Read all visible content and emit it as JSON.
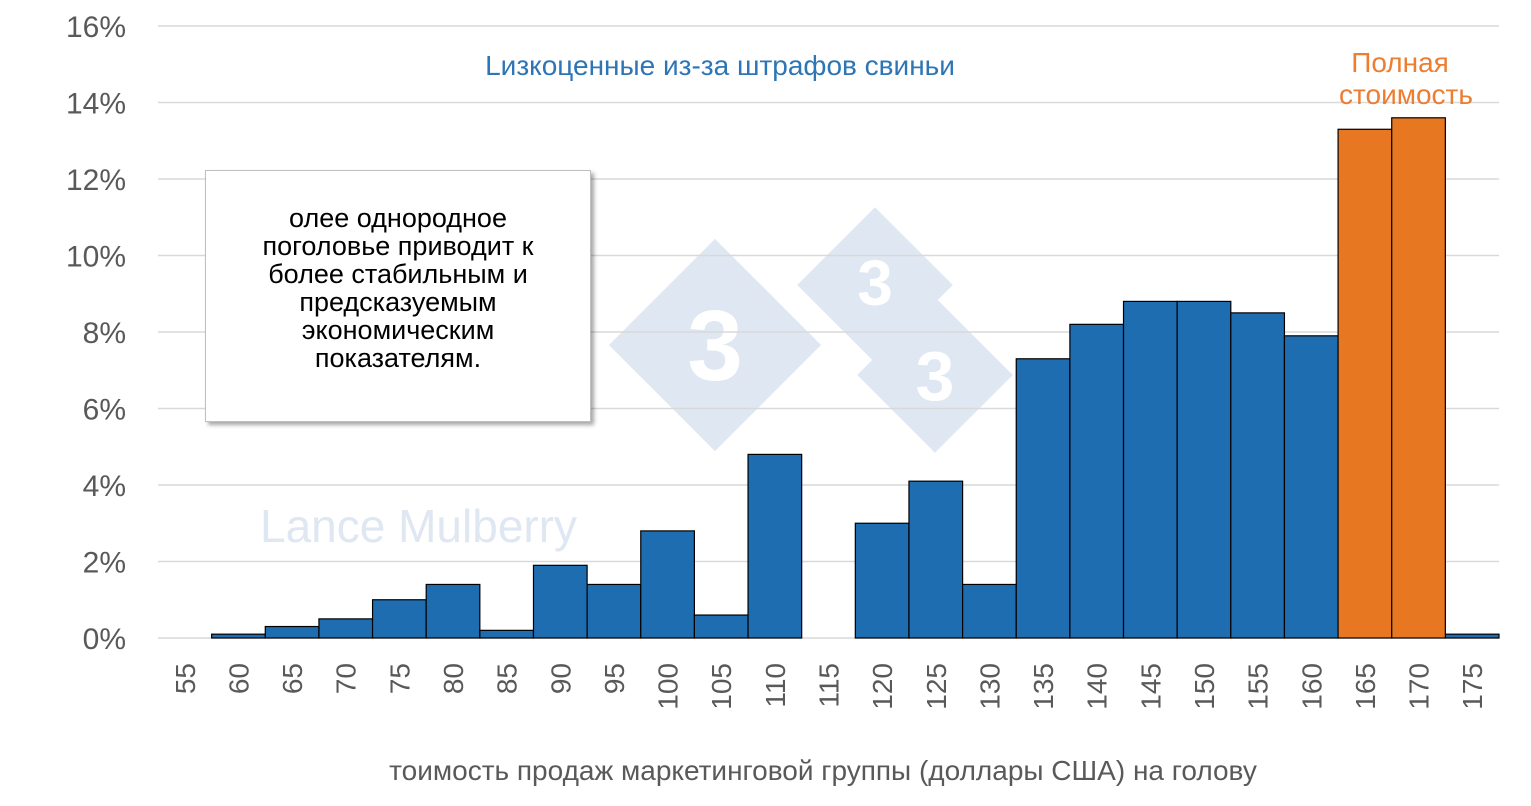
{
  "colors": {
    "discounted_bar": "#1f6db1",
    "full_value_bar": "#e87722",
    "bar_outline": "#000000",
    "gridline": "#d9d9d9",
    "axis_text": "#595959",
    "annotation_blue": "#2e75b6",
    "annotation_orange": "#ed7d31",
    "watermark": "#dfe7f2"
  },
  "watermark": {
    "text": "Lance Mulberry",
    "logo": "333-icon"
  },
  "note": {
    "text": "олее однородное\nпоголовье приводит к\nболее стабильным и\nпредсказуемым\nэкономическим\nпоказателям."
  },
  "chart_data": {
    "type": "bar",
    "categories": [
      "55",
      "60",
      "65",
      "70",
      "75",
      "80",
      "85",
      "90",
      "95",
      "100",
      "105",
      "110",
      "115",
      "120",
      "125",
      "130",
      "135",
      "140",
      "145",
      "150",
      "155",
      "160",
      "165",
      "170",
      "175"
    ],
    "series": [
      {
        "name": "Lизкоценные из-за штрафов свиньи",
        "values": [
          0,
          0.1,
          0.3,
          0.5,
          1.0,
          1.4,
          0.2,
          1.9,
          1.4,
          2.8,
          0.6,
          4.8,
          0,
          3.0,
          4.1,
          1.4,
          7.3,
          8.2,
          8.8,
          8.8,
          8.5,
          7.9,
          null,
          null,
          0.1
        ]
      },
      {
        "name": "Полная стоимость",
        "values": [
          null,
          null,
          null,
          null,
          null,
          null,
          null,
          null,
          null,
          null,
          null,
          null,
          null,
          null,
          null,
          null,
          null,
          null,
          null,
          null,
          null,
          null,
          13.3,
          13.6,
          null
        ]
      }
    ],
    "yticks": [
      "0%",
      "2%",
      "4%",
      "6%",
      "8%",
      "10%",
      "12%",
      "14%",
      "16%"
    ],
    "ylim": [
      0,
      16
    ],
    "xlabel": "тоимость продаж маркетинговой группы (доллары США) на голову",
    "ylabel": "",
    "grid": true,
    "annotations": {
      "discounted": "Lизкоценные из-за штрафов свиньи",
      "full_value_line1": "Полная",
      "full_value_line2": "стоимость"
    }
  }
}
